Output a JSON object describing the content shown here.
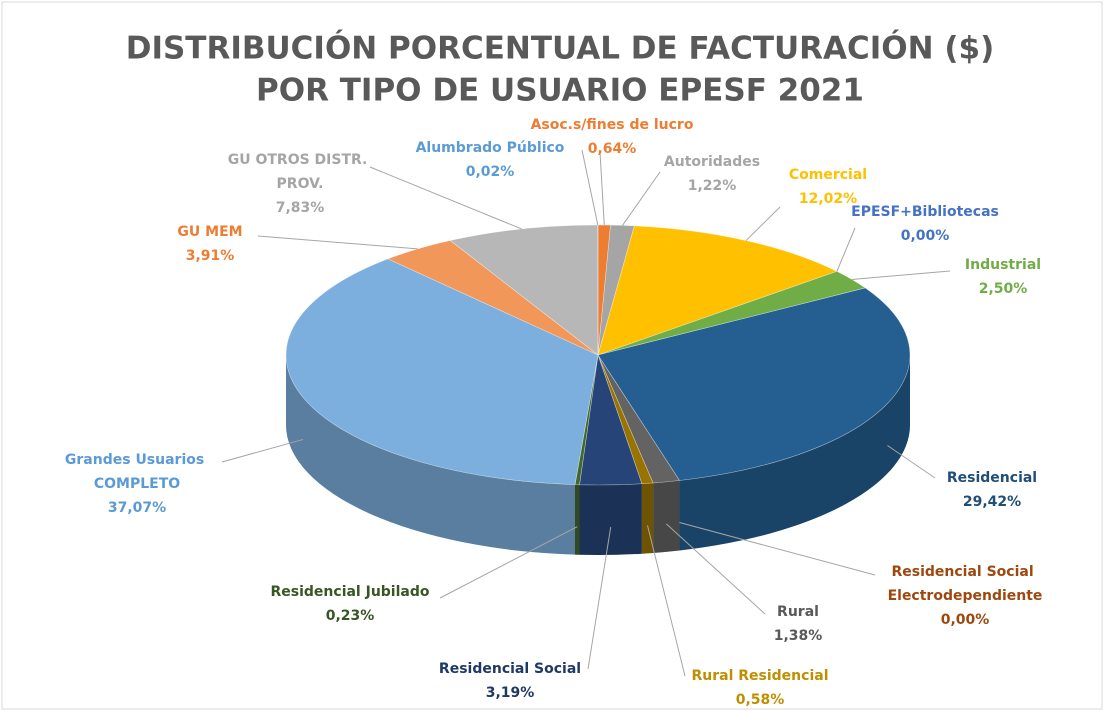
{
  "chart_data": {
    "type": "pie3d",
    "title": [
      "DISTRIBUCIÓN PORCENTUAL DE FACTURACIÓN ($)",
      "POR TIPO DE USUARIO EPESF 2021"
    ],
    "categories": [
      "Asoc.s/fines de lucro",
      "Autoridades",
      "Comercial",
      "EPESF+Bibliotecas",
      "Industrial",
      "Residencial",
      "Residencial Social Electrodependiente",
      "Rural",
      "Rural Residencial",
      "Residencial Social",
      "Residencial Jubilado",
      "Grandes Usuarios COMPLETO",
      "GU MEM",
      "GU OTROS DISTR. PROV.",
      "Alumbrado Público"
    ],
    "values": [
      0.64,
      1.22,
      12.02,
      0.0,
      2.5,
      29.42,
      0.0,
      1.38,
      0.58,
      3.19,
      0.23,
      37.07,
      3.91,
      7.83,
      0.02
    ],
    "value_labels": [
      "0,64%",
      "1,22%",
      "12,02%",
      "0,00%",
      "2,50%",
      "29,42%",
      "0,00%",
      "1,38%",
      "0,58%",
      "3,19%",
      "0,23%",
      "37,07%",
      "3,91%",
      "7,83%",
      "0,02%"
    ],
    "colors": [
      "#ed7d31",
      "#a5a5a5",
      "#ffc000",
      "#4472c4",
      "#70ad47",
      "#255e91",
      "#9e480e",
      "#636363",
      "#997300",
      "#264478",
      "#43682b",
      "#7cafdd",
      "#f1975a",
      "#b7b7b7",
      "#5b9bd5"
    ],
    "label_colors": [
      "#ed7d31",
      "#a5a5a5",
      "#ffc000",
      "#4472c4",
      "#70ad47",
      "#1f4e79",
      "#9e480e",
      "#595959",
      "#bf8f00",
      "#203864",
      "#375623",
      "#5b9bd5",
      "#ed7d31",
      "#a5a5a5",
      "#5b9bd5"
    ]
  }
}
